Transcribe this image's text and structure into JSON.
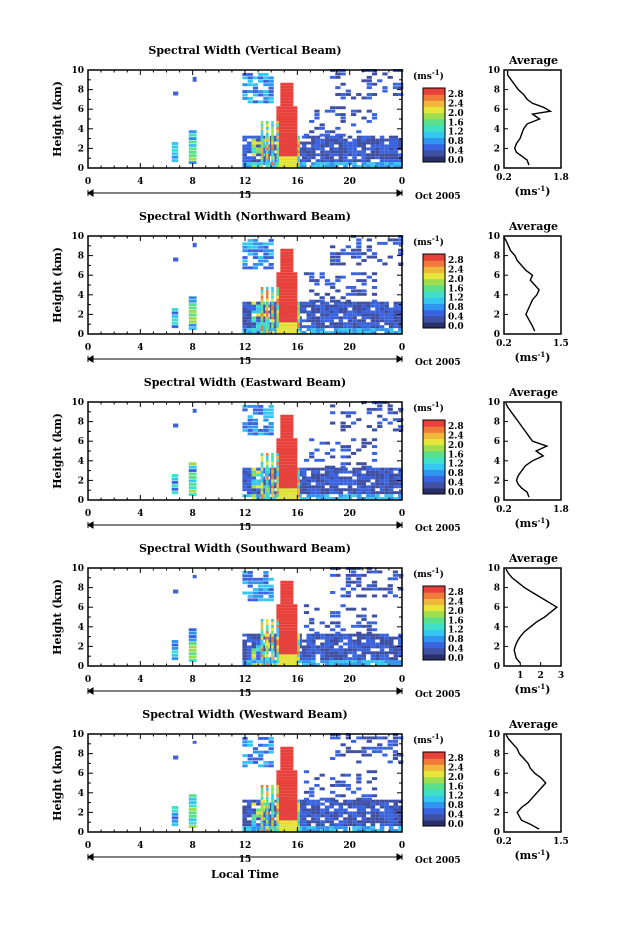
{
  "figure": {
    "xlabel": "Local Time",
    "date_label": "Oct 2005",
    "day_label": "15",
    "unit_label_main": "(ms",
    "unit_label_sup": "-1",
    "unit_label_close": ")",
    "average_title": "Average",
    "ylabel": "Height (km)",
    "colorbar_ticks": [
      "2.8",
      "2.4",
      "2.0",
      "1.6",
      "1.2",
      "0.8",
      "0.4",
      "0.0"
    ],
    "colors": {
      "ramp": [
        "#3f4fa2",
        "#3a63e0",
        "#2f94f0",
        "#36c7f0",
        "#3ee0c8",
        "#5ae08a",
        "#9ede4e",
        "#e6e63a",
        "#f0b83a",
        "#f07a3a",
        "#e8403a"
      ],
      "dark": "#2a2f6a"
    }
  },
  "chart_data": [
    {
      "type": "heatmap",
      "title": "Spectral Width (Vertical Beam)",
      "xlim": [
        0,
        24
      ],
      "ylim": [
        0,
        10
      ],
      "xticks": [
        "0",
        "4",
        "8",
        "12",
        "16",
        "20",
        "0"
      ],
      "yticks": [
        "0",
        "2",
        "4",
        "6",
        "8",
        "10"
      ],
      "profile": {
        "title": "Average",
        "xlim": [
          0.2,
          1.8
        ],
        "xticks": [
          "0.2",
          "1.8"
        ],
        "heights": [
          0.3,
          0.8,
          1.2,
          1.6,
          2.0,
          2.5,
          3.0,
          3.5,
          4.0,
          4.5,
          5.0,
          5.5,
          5.8,
          6.2,
          6.6,
          7.0,
          7.5,
          8.0,
          8.5,
          9.0,
          9.5,
          9.9
        ],
        "values": [
          0.9,
          0.85,
          0.7,
          0.55,
          0.5,
          0.55,
          0.65,
          0.7,
          0.75,
          0.85,
          1.2,
          1.0,
          1.5,
          1.3,
          1.0,
          0.85,
          0.75,
          0.6,
          0.5,
          0.4,
          0.3,
          0.3
        ]
      }
    },
    {
      "type": "heatmap",
      "title": "Spectral Width (Northward Beam)",
      "xlim": [
        0,
        24
      ],
      "ylim": [
        0,
        10
      ],
      "xticks": [
        "0",
        "4",
        "8",
        "12",
        "16",
        "20",
        "0"
      ],
      "yticks": [
        "0",
        "2",
        "4",
        "6",
        "8",
        "10"
      ],
      "profile": {
        "title": "Average",
        "xlim": [
          0.2,
          1.5
        ],
        "xticks": [
          "0.2",
          "1.5"
        ],
        "heights": [
          0.3,
          0.8,
          1.2,
          1.6,
          2.0,
          2.5,
          3.0,
          3.5,
          4.0,
          4.5,
          5.0,
          5.5,
          6.0,
          6.5,
          7.0,
          7.5,
          8.0,
          8.5,
          9.0,
          9.5,
          9.9
        ],
        "values": [
          0.9,
          0.85,
          0.8,
          0.75,
          0.7,
          0.75,
          0.8,
          0.85,
          0.95,
          1.0,
          0.9,
          0.8,
          0.85,
          0.7,
          0.6,
          0.5,
          0.45,
          0.35,
          0.3,
          0.25,
          0.2
        ]
      }
    },
    {
      "type": "heatmap",
      "title": "Spectral Width (Eastward Beam)",
      "xlim": [
        0,
        24
      ],
      "ylim": [
        0,
        10
      ],
      "xticks": [
        "0",
        "4",
        "8",
        "12",
        "16",
        "20",
        "0"
      ],
      "yticks": [
        "0",
        "2",
        "4",
        "6",
        "8",
        "10"
      ],
      "profile": {
        "title": "Average",
        "xlim": [
          0.2,
          1.8
        ],
        "xticks": [
          "0.2",
          "1.8"
        ],
        "heights": [
          0.3,
          0.8,
          1.2,
          1.6,
          2.0,
          2.5,
          3.0,
          3.5,
          4.0,
          4.5,
          5.0,
          5.5,
          6.0,
          6.5,
          7.0,
          7.5,
          8.0,
          8.5,
          9.0,
          9.5,
          9.9
        ],
        "values": [
          0.9,
          0.85,
          0.7,
          0.6,
          0.55,
          0.6,
          0.7,
          0.8,
          1.0,
          1.3,
          1.1,
          1.4,
          1.0,
          0.9,
          0.8,
          0.7,
          0.6,
          0.5,
          0.4,
          0.3,
          0.25
        ]
      }
    },
    {
      "type": "heatmap",
      "title": "Spectral Width (Southward Beam)",
      "xlim": [
        0,
        24
      ],
      "ylim": [
        0,
        10
      ],
      "xticks": [
        "0",
        "4",
        "8",
        "12",
        "16",
        "20",
        "0"
      ],
      "yticks": [
        "0",
        "2",
        "4",
        "6",
        "8",
        "10"
      ],
      "profile": {
        "title": "Average",
        "xlim": [
          0.2,
          3.0
        ],
        "xticks": [
          "1",
          "2",
          "3"
        ],
        "heights": [
          0.3,
          0.8,
          1.2,
          1.6,
          2.0,
          2.5,
          3.0,
          3.5,
          4.0,
          4.5,
          5.0,
          5.5,
          6.0,
          6.5,
          7.0,
          7.5,
          8.0,
          8.5,
          9.0,
          9.5,
          9.9
        ],
        "values": [
          1.0,
          0.8,
          0.75,
          0.7,
          0.75,
          0.85,
          1.0,
          1.2,
          1.5,
          1.8,
          2.2,
          2.5,
          2.8,
          2.4,
          2.0,
          1.6,
          1.2,
          0.9,
          0.6,
          0.4,
          0.3
        ]
      }
    },
    {
      "type": "heatmap",
      "title": "Spectral Width (Westward Beam)",
      "xlim": [
        0,
        24
      ],
      "ylim": [
        0,
        10
      ],
      "xticks": [
        "0",
        "4",
        "8",
        "12",
        "16",
        "20",
        "0"
      ],
      "yticks": [
        "0",
        "2",
        "4",
        "6",
        "8",
        "10"
      ],
      "profile": {
        "title": "Average",
        "xlim": [
          0.2,
          1.5
        ],
        "xticks": [
          "0.2",
          "1.5"
        ],
        "heights": [
          0.3,
          0.8,
          1.2,
          1.6,
          2.0,
          2.5,
          3.0,
          3.5,
          4.0,
          4.5,
          5.0,
          5.5,
          6.0,
          6.5,
          7.0,
          7.5,
          8.0,
          8.5,
          9.0,
          9.5,
          9.9
        ],
        "values": [
          1.0,
          0.8,
          0.6,
          0.55,
          0.5,
          0.6,
          0.75,
          0.85,
          0.95,
          1.05,
          1.15,
          1.05,
          0.9,
          0.8,
          0.75,
          0.65,
          0.55,
          0.5,
          0.4,
          0.3,
          0.25
        ]
      }
    }
  ]
}
